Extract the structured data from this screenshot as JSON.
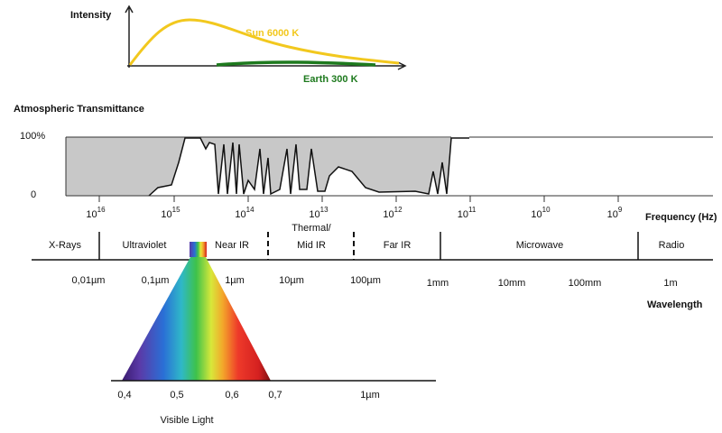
{
  "intensity": {
    "title": "Intensity",
    "sun_label": "Sun 6000 K",
    "earth_label": "Earth 300 K"
  },
  "transmittance": {
    "title": "Atmospheric Transmittance",
    "top_label": "100%",
    "bottom_label": "0"
  },
  "frequency": {
    "ticks": [
      {
        "base": "10",
        "exponent": "16"
      },
      {
        "base": "10",
        "exponent": "15"
      },
      {
        "base": "10",
        "exponent": "14"
      },
      {
        "base": "10",
        "exponent": "13"
      },
      {
        "base": "10",
        "exponent": "12"
      },
      {
        "base": "10",
        "exponent": "11"
      },
      {
        "base": "10",
        "exponent": "10"
      },
      {
        "base": "10",
        "exponent": "9"
      }
    ],
    "label": "Frequency (Hz)"
  },
  "bands": [
    "X-Rays",
    "Ultraviolet",
    "Near IR",
    "Thermal/",
    "Mid IR",
    "Far IR",
    "Microwave",
    "Radio"
  ],
  "wavelength": {
    "ticks": [
      "0,01µm",
      "0,1µm",
      "1µm",
      "10µm",
      "100µm",
      "1mm",
      "10mm",
      "100mm",
      "1m"
    ],
    "label": "Wavelength"
  },
  "visible": {
    "ticks": [
      "0,4",
      "0,5",
      "0,6",
      "0,7",
      "1µm"
    ],
    "label": "Visible Light"
  }
}
